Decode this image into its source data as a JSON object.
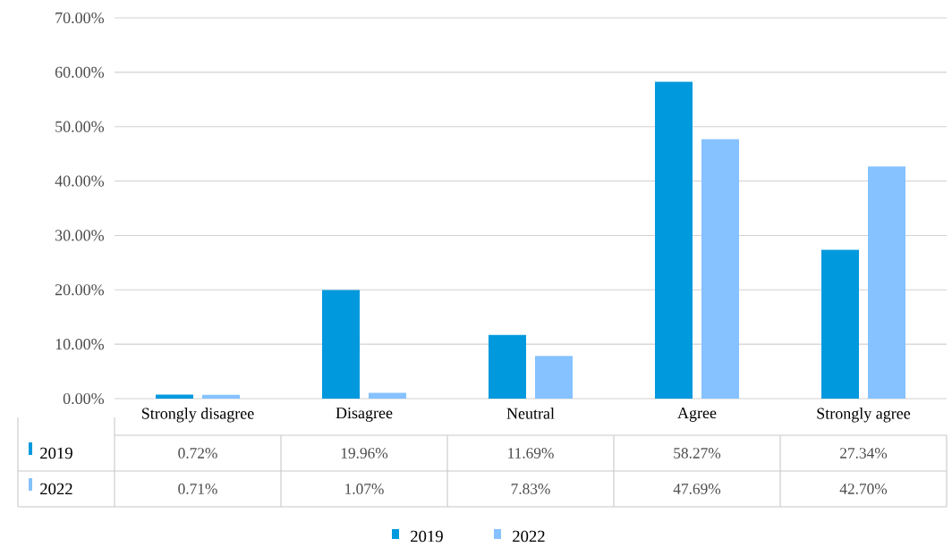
{
  "chart_data": {
    "type": "bar",
    "categories": [
      "Strongly disagree",
      "Disagree",
      "Neutral",
      "Agree",
      "Strongly agree"
    ],
    "series": [
      {
        "name": "2019",
        "color": "#0099dd",
        "values": [
          0.72,
          19.96,
          11.69,
          58.27,
          27.34
        ],
        "value_labels": [
          "0.72%",
          "19.96%",
          "11.69%",
          "58.27%",
          "27.34%"
        ]
      },
      {
        "name": "2022",
        "color": "#85c2ff",
        "values": [
          0.71,
          1.07,
          7.83,
          47.69,
          42.7
        ],
        "value_labels": [
          "0.71%",
          "1.07%",
          "7.83%",
          "47.69%",
          "42.70%"
        ]
      }
    ],
    "ylim": [
      0,
      70
    ],
    "yticks": [
      {
        "value": 0,
        "label": "0.00%"
      },
      {
        "value": 10,
        "label": "10.00%"
      },
      {
        "value": 20,
        "label": "20.00%"
      },
      {
        "value": 30,
        "label": "30.00%"
      },
      {
        "value": 40,
        "label": "40.00%"
      },
      {
        "value": 50,
        "label": "50.00%"
      },
      {
        "value": 60,
        "label": "60.00%"
      },
      {
        "value": 70,
        "label": "70.00%"
      }
    ],
    "grid": "y",
    "legend": "bottom"
  }
}
